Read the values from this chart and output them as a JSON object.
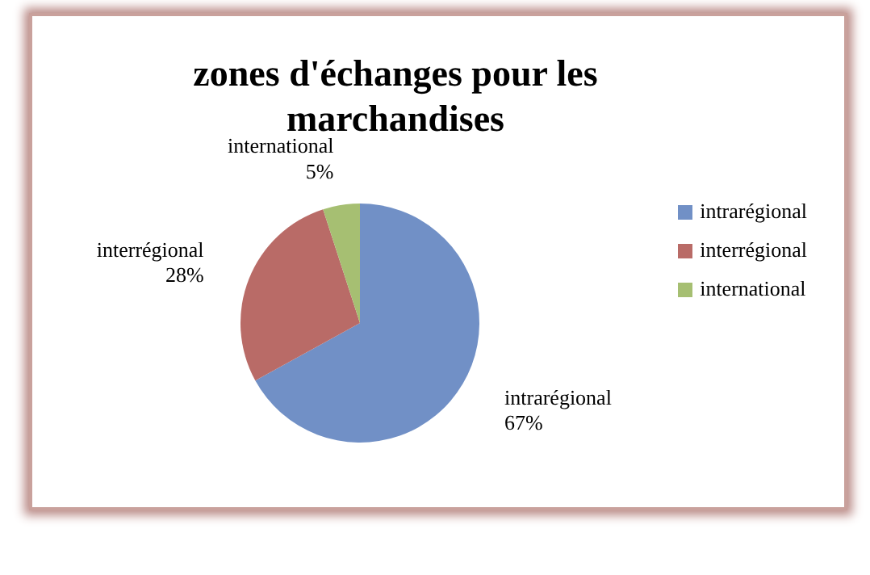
{
  "chart_data": {
    "type": "pie",
    "title": "zones d'échanges pour les marchandises",
    "categories": [
      "intrarégional",
      "interrégional",
      "international"
    ],
    "values": [
      67,
      28,
      5
    ],
    "value_labels": [
      "67%",
      "28%",
      "5%"
    ],
    "colors": [
      "#7190c6",
      "#b96b67",
      "#a6bf72"
    ],
    "legend": "right"
  }
}
